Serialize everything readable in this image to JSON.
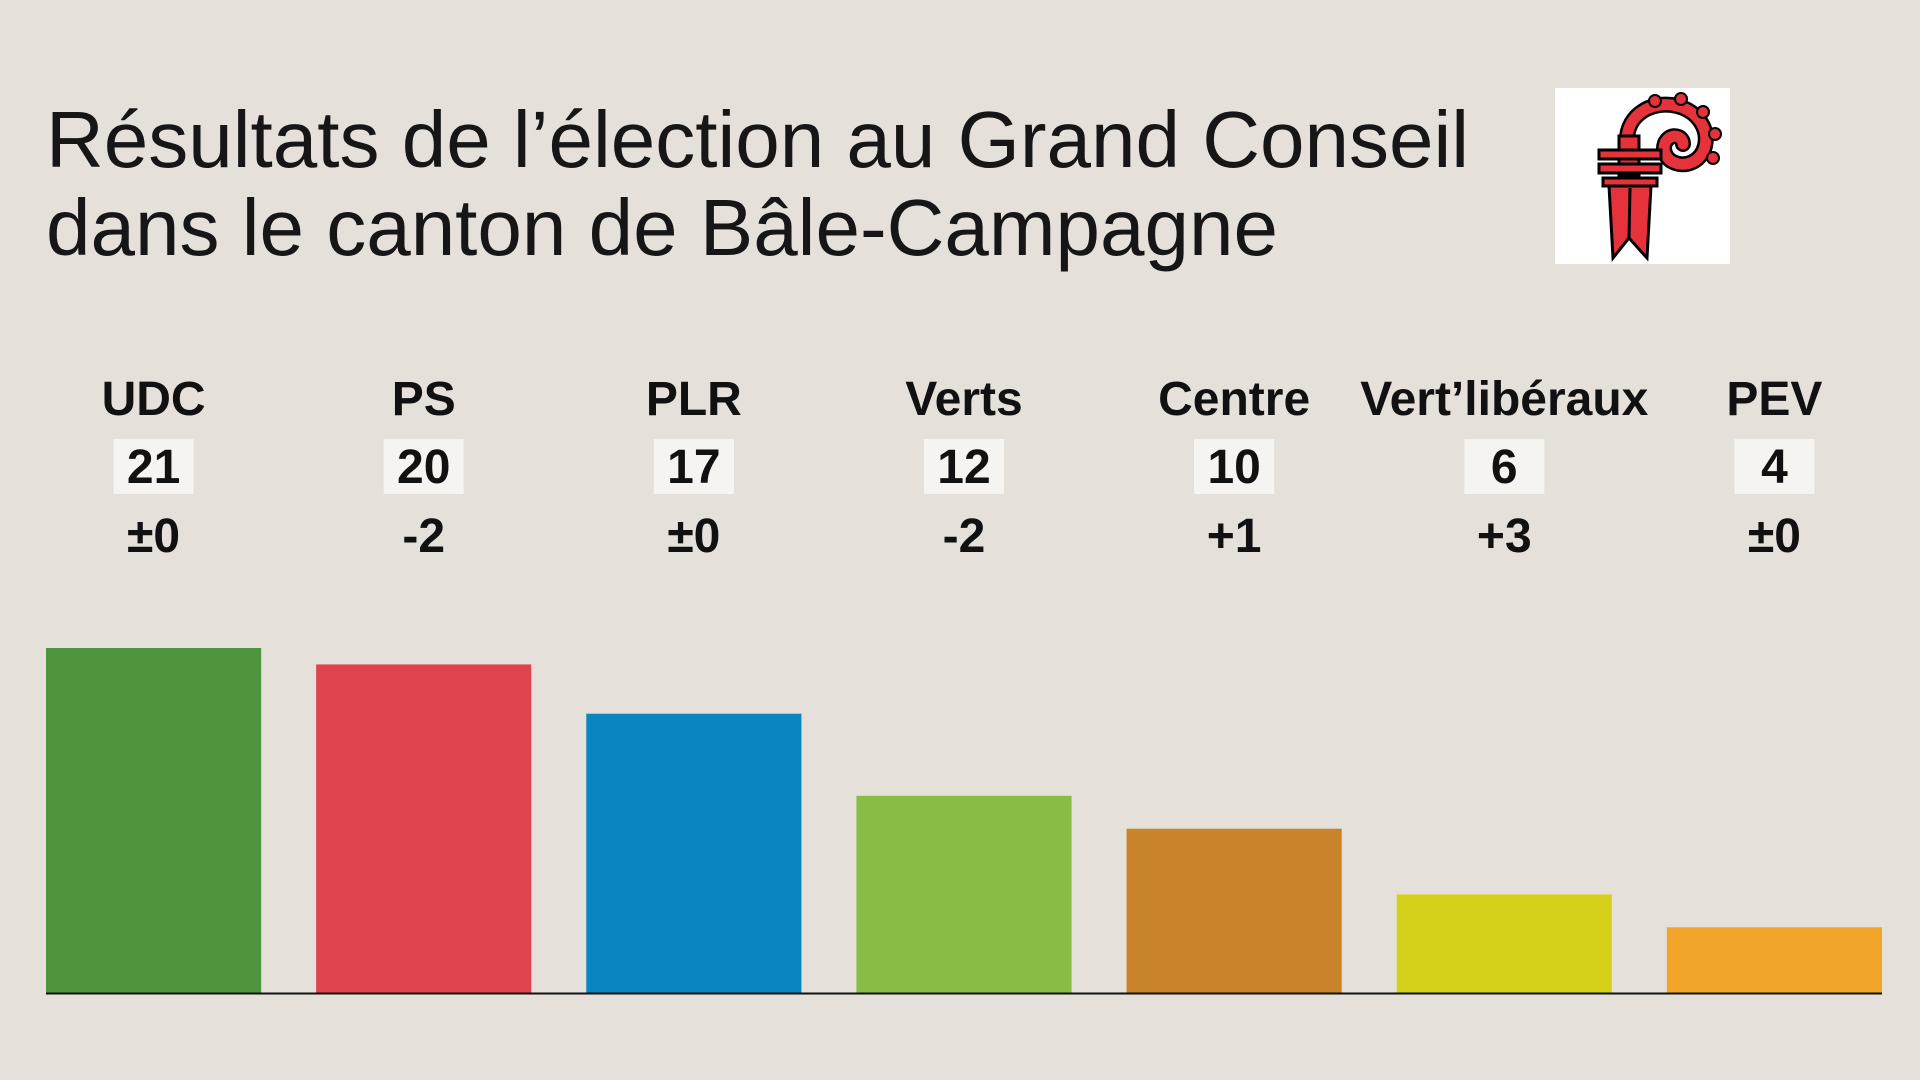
{
  "title": {
    "line1": "Résultats de l’élection au Grand Conseil",
    "line2": "dans le canton de Bâle-Campagne"
  },
  "coat_of_arms": {
    "icon": "basel-landschaft-crozier-icon",
    "colors": {
      "crozier": "#e5323b",
      "outline": "#000000",
      "background": "#ffffff"
    }
  },
  "chart_data": {
    "type": "bar",
    "categories": [
      "UDC",
      "PS",
      "PLR",
      "Verts",
      "Centre",
      "Vert’libéraux",
      "PEV"
    ],
    "series": [
      {
        "values": [
          21,
          20,
          17,
          12,
          10,
          6,
          4
        ]
      }
    ],
    "changes": [
      "±0",
      "-2",
      "±0",
      "-2",
      "+1",
      "+3",
      "±0"
    ],
    "colors": [
      "#4f953e",
      "#df434d",
      "#0a85c1",
      "#87bd45",
      "#c9832a",
      "#d5d11a",
      "#f2a52b"
    ],
    "ylim": [
      0,
      21
    ],
    "grid": false,
    "title": "",
    "xlabel": "",
    "ylabel": ""
  }
}
